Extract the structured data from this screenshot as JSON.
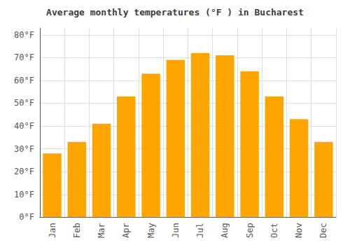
{
  "chart_data": {
    "type": "bar",
    "title": "Average monthly temperatures (°F ) in Bucharest",
    "categories": [
      "Jan",
      "Feb",
      "Mar",
      "Apr",
      "May",
      "Jun",
      "Jul",
      "Aug",
      "Sep",
      "Oct",
      "Nov",
      "Dec"
    ],
    "values": [
      28,
      33,
      41,
      53,
      63,
      69,
      72,
      71,
      64,
      53,
      43,
      33
    ],
    "color": "#FFA500",
    "ylim": [
      0,
      83
    ],
    "yticks": [
      {
        "value": 0,
        "label": "0°F"
      },
      {
        "value": 10,
        "label": "10°F"
      },
      {
        "value": 20,
        "label": "20°F"
      },
      {
        "value": 30,
        "label": "30°F"
      },
      {
        "value": 40,
        "label": "40°F"
      },
      {
        "value": 50,
        "label": "50°F"
      },
      {
        "value": 60,
        "label": "60°F"
      },
      {
        "value": 70,
        "label": "70°F"
      },
      {
        "value": 80,
        "label": "80°F"
      }
    ],
    "grid": true
  }
}
